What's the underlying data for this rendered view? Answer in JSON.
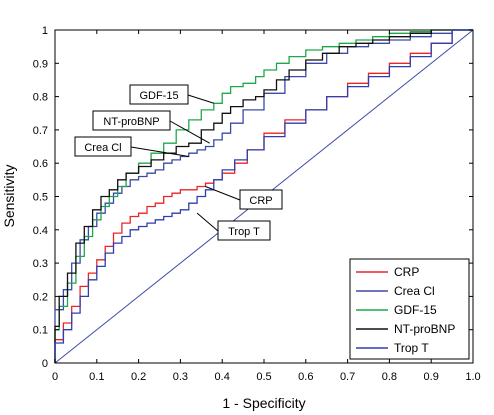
{
  "chart_data": {
    "type": "line",
    "title": "",
    "xlabel": "1 - Specificity",
    "ylabel": "Sensitivity",
    "xlim": [
      0,
      1
    ],
    "ylim": [
      0,
      1
    ],
    "xticks": [
      "0",
      "0.1",
      "0.2",
      "0.3",
      "0.4",
      "0.5",
      "0.6",
      "0.7",
      "0.8",
      "0.9",
      "1.0"
    ],
    "yticks": [
      "0",
      "0.1",
      "0.2",
      "0.3",
      "0.4",
      "0.5",
      "0.6",
      "0.7",
      "0.8",
      "0.9",
      "1"
    ],
    "grid": false,
    "legend_position": "bottom-right",
    "series": [
      {
        "name": "CRP",
        "color": "#e8262a",
        "x": [
          0,
          0.02,
          0.04,
          0.06,
          0.08,
          0.1,
          0.12,
          0.14,
          0.16,
          0.18,
          0.2,
          0.22,
          0.24,
          0.26,
          0.28,
          0.3,
          0.32,
          0.34,
          0.36,
          0.38,
          0.4,
          0.43,
          0.46,
          0.5,
          0.55,
          0.6,
          0.65,
          0.7,
          0.75,
          0.8,
          0.85,
          0.9,
          0.95,
          1.0
        ],
        "y": [
          0,
          0.07,
          0.12,
          0.17,
          0.23,
          0.27,
          0.31,
          0.35,
          0.39,
          0.42,
          0.44,
          0.45,
          0.47,
          0.48,
          0.5,
          0.51,
          0.52,
          0.52,
          0.53,
          0.54,
          0.55,
          0.57,
          0.6,
          0.64,
          0.69,
          0.73,
          0.76,
          0.8,
          0.84,
          0.87,
          0.9,
          0.93,
          0.96,
          1.0
        ]
      },
      {
        "name": "Crea Cl",
        "color": "#3b4aa8",
        "x": [
          0,
          0.02,
          0.04,
          0.06,
          0.08,
          0.1,
          0.12,
          0.14,
          0.16,
          0.18,
          0.2,
          0.22,
          0.24,
          0.26,
          0.28,
          0.3,
          0.32,
          0.34,
          0.36,
          0.38,
          0.4,
          0.42,
          0.45,
          0.5,
          0.55,
          0.6,
          0.65,
          0.7,
          0.75,
          0.8,
          0.85,
          0.9,
          0.95,
          1.0
        ],
        "y": [
          0,
          0.16,
          0.22,
          0.3,
          0.37,
          0.41,
          0.45,
          0.48,
          0.51,
          0.53,
          0.55,
          0.56,
          0.57,
          0.58,
          0.6,
          0.61,
          0.62,
          0.63,
          0.64,
          0.65,
          0.67,
          0.69,
          0.72,
          0.76,
          0.81,
          0.86,
          0.9,
          0.93,
          0.95,
          0.96,
          0.97,
          0.98,
          0.99,
          1.0
        ]
      },
      {
        "name": "GDF-15",
        "color": "#1fa84a",
        "x": [
          0,
          0.01,
          0.03,
          0.05,
          0.07,
          0.09,
          0.11,
          0.13,
          0.15,
          0.17,
          0.2,
          0.23,
          0.26,
          0.29,
          0.32,
          0.35,
          0.38,
          0.4,
          0.42,
          0.45,
          0.48,
          0.5,
          0.53,
          0.56,
          0.6,
          0.64,
          0.68,
          0.72,
          0.76,
          0.8,
          0.85,
          0.9,
          0.95,
          1.0
        ],
        "y": [
          0,
          0.1,
          0.17,
          0.24,
          0.32,
          0.38,
          0.43,
          0.47,
          0.5,
          0.53,
          0.57,
          0.6,
          0.63,
          0.66,
          0.7,
          0.73,
          0.76,
          0.78,
          0.81,
          0.83,
          0.84,
          0.86,
          0.88,
          0.9,
          0.92,
          0.94,
          0.95,
          0.96,
          0.97,
          0.98,
          0.99,
          0.995,
          1.0,
          1.0
        ]
      },
      {
        "name": "NT-proBNP",
        "color": "#111111",
        "x": [
          0,
          0.01,
          0.03,
          0.05,
          0.07,
          0.09,
          0.11,
          0.13,
          0.15,
          0.17,
          0.2,
          0.23,
          0.26,
          0.29,
          0.32,
          0.35,
          0.38,
          0.4,
          0.42,
          0.45,
          0.48,
          0.5,
          0.53,
          0.56,
          0.6,
          0.64,
          0.68,
          0.72,
          0.76,
          0.8,
          0.85,
          0.9,
          0.95,
          1.0
        ],
        "y": [
          0,
          0.11,
          0.2,
          0.27,
          0.36,
          0.41,
          0.46,
          0.5,
          0.52,
          0.55,
          0.57,
          0.59,
          0.61,
          0.63,
          0.65,
          0.66,
          0.7,
          0.72,
          0.75,
          0.77,
          0.79,
          0.8,
          0.82,
          0.85,
          0.88,
          0.91,
          0.93,
          0.95,
          0.96,
          0.97,
          0.98,
          0.99,
          1.0,
          1.0
        ]
      },
      {
        "name": "Trop T",
        "color": "#2f3fb0",
        "x": [
          0,
          0.02,
          0.04,
          0.06,
          0.08,
          0.1,
          0.12,
          0.14,
          0.16,
          0.18,
          0.2,
          0.22,
          0.24,
          0.26,
          0.28,
          0.3,
          0.32,
          0.34,
          0.36,
          0.38,
          0.4,
          0.43,
          0.46,
          0.5,
          0.55,
          0.6,
          0.65,
          0.7,
          0.75,
          0.8,
          0.85,
          0.9,
          0.95,
          1.0
        ],
        "y": [
          0,
          0.06,
          0.1,
          0.15,
          0.2,
          0.25,
          0.29,
          0.33,
          0.36,
          0.38,
          0.4,
          0.41,
          0.42,
          0.43,
          0.44,
          0.45,
          0.46,
          0.48,
          0.5,
          0.52,
          0.55,
          0.58,
          0.61,
          0.64,
          0.68,
          0.72,
          0.76,
          0.8,
          0.83,
          0.86,
          0.89,
          0.92,
          0.96,
          1.0
        ]
      }
    ],
    "annotations": [
      {
        "label": "GDF-15",
        "x": 0.38,
        "y": 0.78
      },
      {
        "label": "NT-proBNP",
        "x": 0.37,
        "y": 0.66
      },
      {
        "label": "Crea Cl",
        "x": 0.32,
        "y": 0.62
      },
      {
        "label": "CRP",
        "x": 0.36,
        "y": 0.53
      },
      {
        "label": "Trop T",
        "x": 0.34,
        "y": 0.45
      }
    ]
  }
}
